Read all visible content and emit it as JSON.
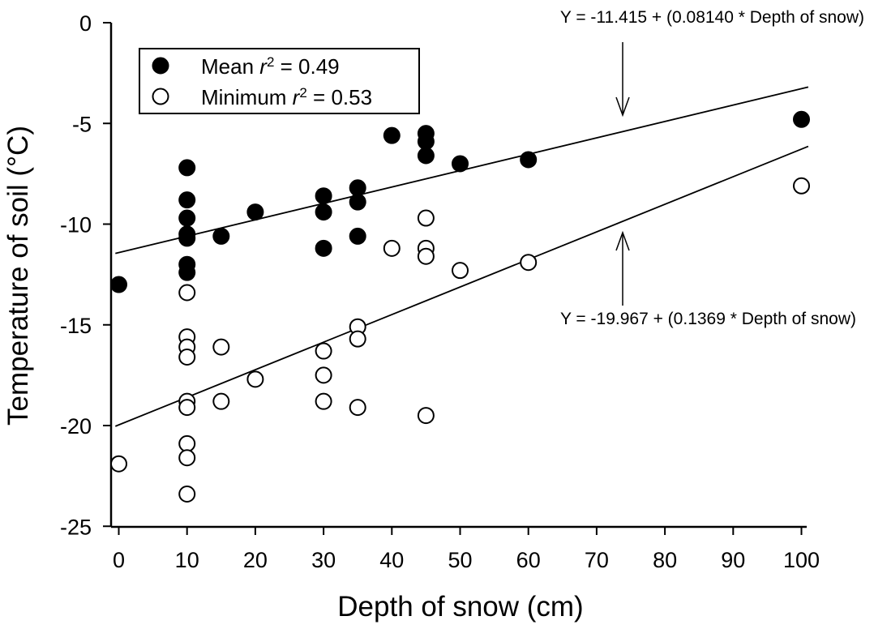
{
  "chart_data": {
    "type": "scatter",
    "xlabel": "Depth of snow (cm)",
    "ylabel": "Temperature of soil (°C)",
    "x_ticks": [
      "0",
      "10",
      "20",
      "30",
      "40",
      "50",
      "60",
      "70",
      "80",
      "90",
      "100"
    ],
    "y_ticks": [
      "0",
      "-5",
      "-10",
      "-15",
      "-20",
      "-25"
    ],
    "xlim": [
      -2,
      101
    ],
    "ylim": [
      -25,
      0
    ],
    "grid": false,
    "legend_position": "top-left",
    "legend": {
      "mean": {
        "label": "Mean ",
        "r": "r",
        "sup": "2",
        "value": " = 0.49"
      },
      "minimum": {
        "label": "Minimum ",
        "r": "r",
        "sup": "2",
        "value": " = 0.53"
      }
    },
    "series": [
      {
        "name": "Mean",
        "marker": "filled-circle",
        "color": "#000000",
        "points": [
          [
            0,
            -13.0
          ],
          [
            10,
            -7.2
          ],
          [
            10,
            -8.8
          ],
          [
            10,
            -9.7
          ],
          [
            10,
            -10.5
          ],
          [
            10,
            -10.7
          ],
          [
            10,
            -12.0
          ],
          [
            10,
            -12.4
          ],
          [
            15,
            -10.6
          ],
          [
            20,
            -9.4
          ],
          [
            30,
            -8.6
          ],
          [
            30,
            -9.4
          ],
          [
            30,
            -11.2
          ],
          [
            35,
            -8.2
          ],
          [
            35,
            -8.9
          ],
          [
            35,
            -10.6
          ],
          [
            40,
            -5.6
          ],
          [
            45,
            -5.5
          ],
          [
            45,
            -5.9
          ],
          [
            45,
            -6.6
          ],
          [
            50,
            -7.0
          ],
          [
            60,
            -6.8
          ],
          [
            100,
            -4.8
          ]
        ],
        "fit": {
          "intercept": -11.415,
          "slope": 0.0814,
          "equation": "Y = -11.415 + (0.08140 * Depth of snow)"
        }
      },
      {
        "name": "Minimum",
        "marker": "open-circle",
        "color": "#000000",
        "points": [
          [
            0,
            -21.9
          ],
          [
            10,
            -13.4
          ],
          [
            10,
            -15.6
          ],
          [
            10,
            -16.1
          ],
          [
            10,
            -16.6
          ],
          [
            10,
            -18.8
          ],
          [
            10,
            -19.1
          ],
          [
            10,
            -20.9
          ],
          [
            10,
            -21.6
          ],
          [
            10,
            -23.4
          ],
          [
            15,
            -16.1
          ],
          [
            15,
            -18.8
          ],
          [
            20,
            -17.7
          ],
          [
            30,
            -16.3
          ],
          [
            30,
            -17.5
          ],
          [
            30,
            -18.8
          ],
          [
            35,
            -15.1
          ],
          [
            35,
            -15.7
          ],
          [
            35,
            -19.1
          ],
          [
            40,
            -11.2
          ],
          [
            45,
            -9.7
          ],
          [
            45,
            -11.2
          ],
          [
            45,
            -11.6
          ],
          [
            45,
            -19.5
          ],
          [
            50,
            -12.3
          ],
          [
            60,
            -11.9
          ],
          [
            100,
            -8.1
          ]
        ],
        "fit": {
          "intercept": -19.967,
          "slope": 0.1369,
          "equation": "Y = -19.967 + (0.1369 * Depth of snow)"
        }
      }
    ]
  }
}
